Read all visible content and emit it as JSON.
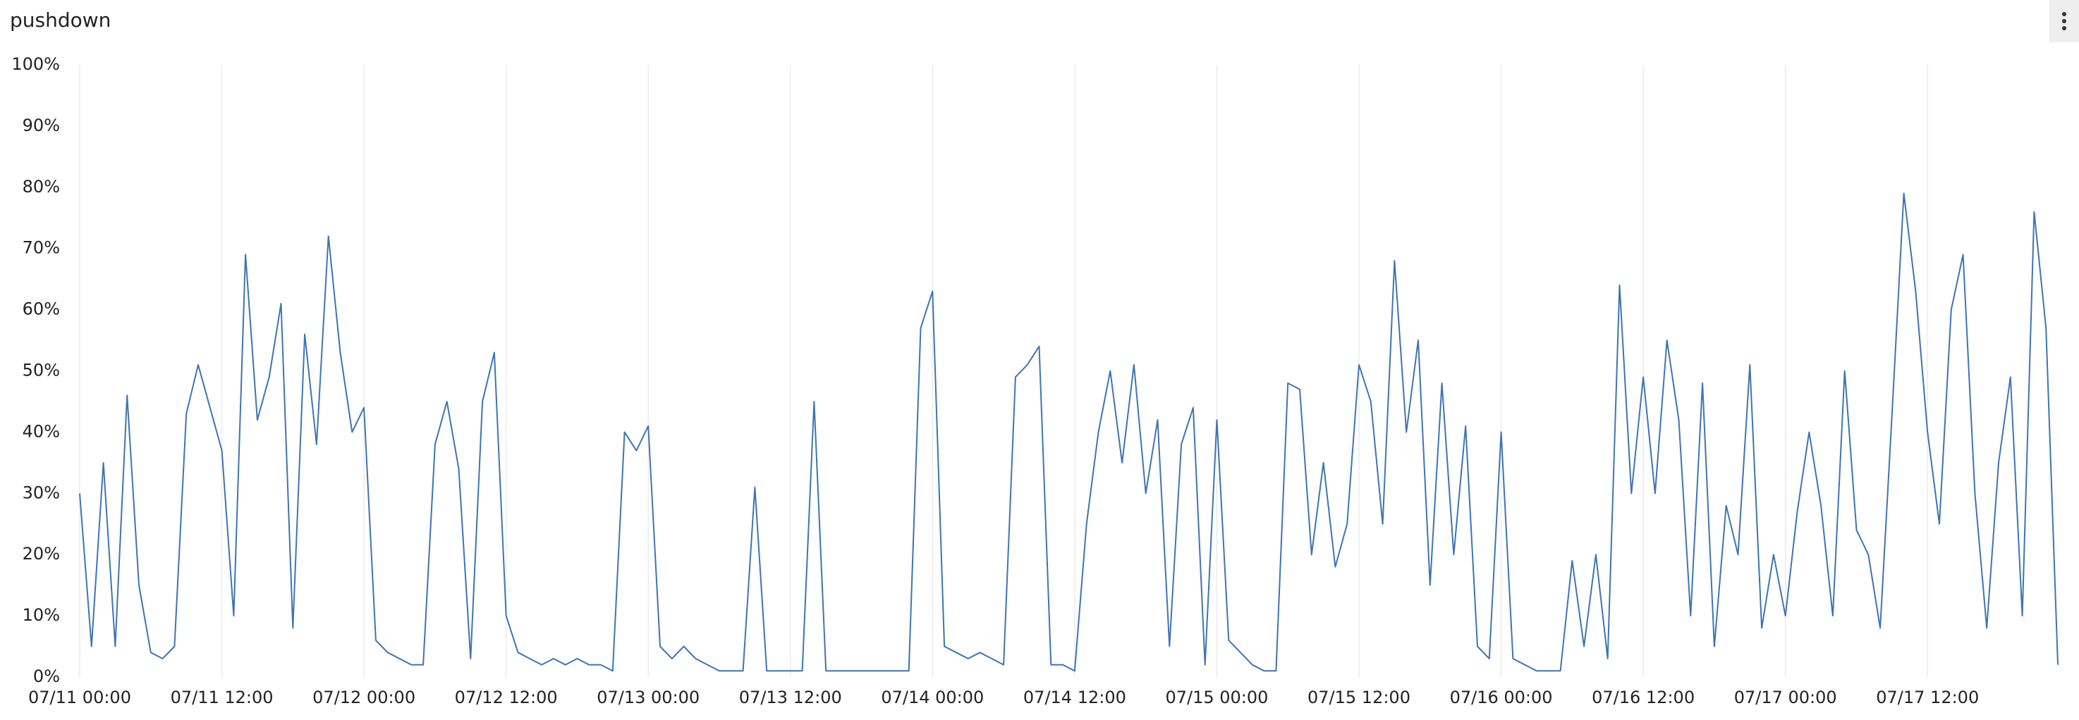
{
  "chart_data": {
    "type": "line",
    "title": "pushdown",
    "color": "#3d74b6",
    "grid": true,
    "x": [
      "07/11 00:00",
      "07/11 01:00",
      "07/11 02:00",
      "07/11 03:00",
      "07/11 04:00",
      "07/11 05:00",
      "07/11 06:00",
      "07/11 07:00",
      "07/11 08:00",
      "07/11 09:00",
      "07/11 10:00",
      "07/11 11:00",
      "07/11 12:00",
      "07/11 13:00",
      "07/11 14:00",
      "07/11 15:00",
      "07/11 16:00",
      "07/11 17:00",
      "07/11 18:00",
      "07/11 19:00",
      "07/11 20:00",
      "07/11 21:00",
      "07/11 22:00",
      "07/11 23:00",
      "07/12 00:00",
      "07/12 01:00",
      "07/12 02:00",
      "07/12 03:00",
      "07/12 04:00",
      "07/12 05:00",
      "07/12 06:00",
      "07/12 07:00",
      "07/12 08:00",
      "07/12 09:00",
      "07/12 10:00",
      "07/12 11:00",
      "07/12 12:00",
      "07/12 13:00",
      "07/12 14:00",
      "07/12 15:00",
      "07/12 16:00",
      "07/12 17:00",
      "07/12 18:00",
      "07/12 19:00",
      "07/12 20:00",
      "07/12 21:00",
      "07/12 22:00",
      "07/12 23:00",
      "07/13 00:00",
      "07/13 01:00",
      "07/13 02:00",
      "07/13 03:00",
      "07/13 04:00",
      "07/13 05:00",
      "07/13 06:00",
      "07/13 07:00",
      "07/13 08:00",
      "07/13 09:00",
      "07/13 10:00",
      "07/13 11:00",
      "07/13 12:00",
      "07/13 13:00",
      "07/13 14:00",
      "07/13 15:00",
      "07/13 16:00",
      "07/13 17:00",
      "07/13 18:00",
      "07/13 19:00",
      "07/13 20:00",
      "07/13 21:00",
      "07/13 22:00",
      "07/13 23:00",
      "07/14 00:00",
      "07/14 01:00",
      "07/14 02:00",
      "07/14 03:00",
      "07/14 04:00",
      "07/14 05:00",
      "07/14 06:00",
      "07/14 07:00",
      "07/14 08:00",
      "07/14 09:00",
      "07/14 10:00",
      "07/14 11:00",
      "07/14 12:00",
      "07/14 13:00",
      "07/14 14:00",
      "07/14 15:00",
      "07/14 16:00",
      "07/14 17:00",
      "07/14 18:00",
      "07/14 19:00",
      "07/14 20:00",
      "07/14 21:00",
      "07/14 22:00",
      "07/14 23:00",
      "07/15 00:00",
      "07/15 01:00",
      "07/15 02:00",
      "07/15 03:00",
      "07/15 04:00",
      "07/15 05:00",
      "07/15 06:00",
      "07/15 07:00",
      "07/15 08:00",
      "07/15 09:00",
      "07/15 10:00",
      "07/15 11:00",
      "07/15 12:00",
      "07/15 13:00",
      "07/15 14:00",
      "07/15 15:00",
      "07/15 16:00",
      "07/15 17:00",
      "07/15 18:00",
      "07/15 19:00",
      "07/15 20:00",
      "07/15 21:00",
      "07/15 22:00",
      "07/15 23:00",
      "07/16 00:00",
      "07/16 01:00",
      "07/16 02:00",
      "07/16 03:00",
      "07/16 04:00",
      "07/16 05:00",
      "07/16 06:00",
      "07/16 07:00",
      "07/16 08:00",
      "07/16 09:00",
      "07/16 10:00",
      "07/16 11:00",
      "07/16 12:00",
      "07/16 13:00",
      "07/16 14:00",
      "07/16 15:00",
      "07/16 16:00",
      "07/16 17:00",
      "07/16 18:00",
      "07/16 19:00",
      "07/16 20:00",
      "07/16 21:00",
      "07/16 22:00",
      "07/16 23:00",
      "07/17 00:00",
      "07/17 01:00",
      "07/17 02:00",
      "07/17 03:00",
      "07/17 04:00",
      "07/17 05:00",
      "07/17 06:00",
      "07/17 07:00",
      "07/17 08:00",
      "07/17 09:00",
      "07/17 10:00",
      "07/17 11:00",
      "07/17 12:00",
      "07/17 13:00",
      "07/17 14:00",
      "07/17 15:00",
      "07/17 16:00",
      "07/17 17:00",
      "07/17 18:00",
      "07/17 19:00",
      "07/17 20:00",
      "07/17 21:00",
      "07/17 22:00",
      "07/17 23:00"
    ],
    "values": [
      30,
      5,
      35,
      5,
      46,
      15,
      4,
      3,
      5,
      43,
      51,
      44,
      37,
      10,
      69,
      42,
      49,
      61,
      8,
      56,
      38,
      72,
      53,
      40,
      44,
      6,
      4,
      3,
      2,
      2,
      38,
      45,
      34,
      3,
      45,
      53,
      10,
      4,
      3,
      2,
      3,
      2,
      3,
      2,
      2,
      1,
      40,
      37,
      41,
      5,
      3,
      5,
      3,
      2,
      1,
      1,
      1,
      31,
      1,
      1,
      1,
      1,
      45,
      1,
      1,
      1,
      1,
      1,
      1,
      1,
      1,
      57,
      63,
      5,
      4,
      3,
      4,
      3,
      2,
      49,
      51,
      54,
      2,
      2,
      1,
      25,
      40,
      50,
      35,
      51,
      30,
      42,
      5,
      38,
      44,
      2,
      42,
      6,
      4,
      2,
      1,
      1,
      48,
      47,
      20,
      35,
      18,
      25,
      51,
      45,
      25,
      68,
      40,
      55,
      15,
      48,
      20,
      41,
      5,
      3,
      40,
      3,
      2,
      1,
      1,
      1,
      19,
      5,
      20,
      3,
      64,
      30,
      49,
      30,
      55,
      42,
      10,
      48,
      5,
      28,
      20,
      51,
      8,
      20,
      10,
      27,
      40,
      28,
      10,
      50,
      24,
      20,
      8,
      43,
      79,
      63,
      40,
      25,
      60,
      69,
      30,
      8,
      35,
      49,
      10,
      76,
      57,
      2
    ],
    "xlim": [
      "07/11 00:00",
      "07/17 23:00"
    ],
    "xticks": [
      "07/11 00:00",
      "07/11 12:00",
      "07/12 00:00",
      "07/12 12:00",
      "07/13 00:00",
      "07/13 12:00",
      "07/14 00:00",
      "07/14 12:00",
      "07/15 00:00",
      "07/15 12:00",
      "07/16 00:00",
      "07/16 12:00",
      "07/17 00:00",
      "07/17 12:00"
    ],
    "ylim": [
      0,
      100
    ],
    "yticks": [
      {
        "value": 0,
        "label": "0%"
      },
      {
        "value": 10,
        "label": "10%"
      },
      {
        "value": 20,
        "label": "20%"
      },
      {
        "value": 30,
        "label": "30%"
      },
      {
        "value": 40,
        "label": "40%"
      },
      {
        "value": 50,
        "label": "50%"
      },
      {
        "value": 60,
        "label": "60%"
      },
      {
        "value": 70,
        "label": "70%"
      },
      {
        "value": 80,
        "label": "80%"
      },
      {
        "value": 90,
        "label": "90%"
      },
      {
        "value": 100,
        "label": "100%"
      }
    ]
  }
}
